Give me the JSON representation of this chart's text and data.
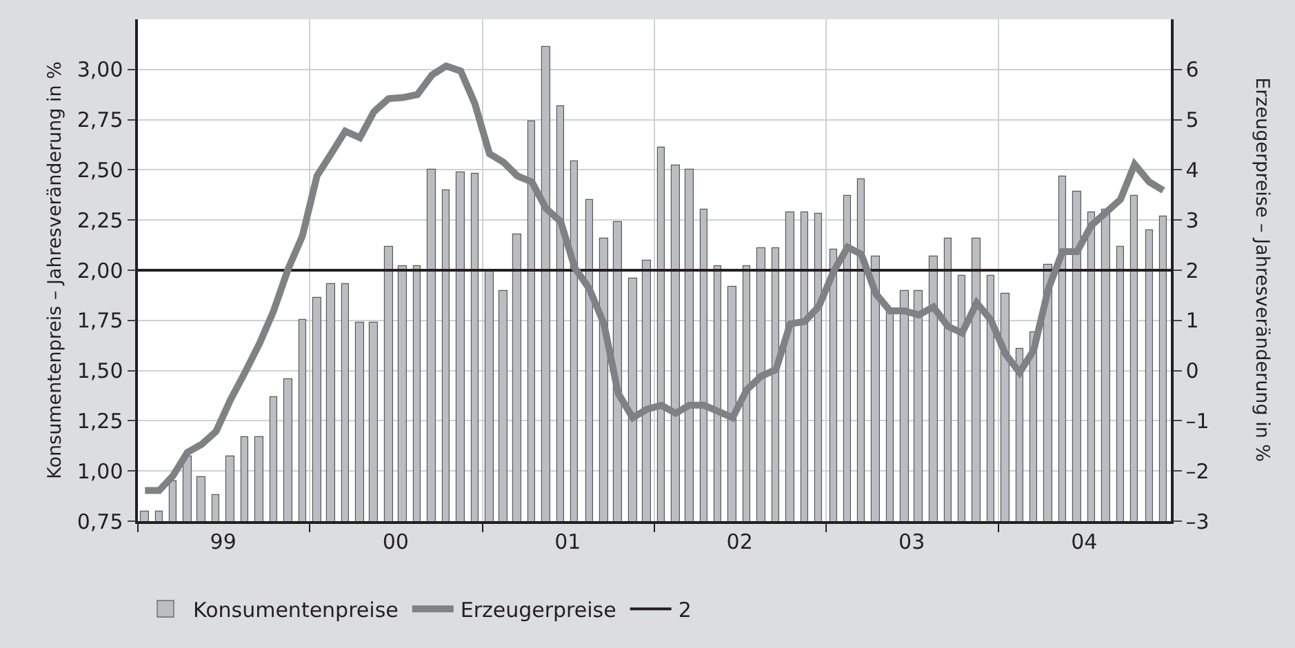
{
  "chart_data": {
    "type": "bar",
    "ylabel": "Konsumentenpreis – Jahresveränderung in %",
    "y2label": "Erzeugerpreise – Jahresveränderung in %",
    "x": [
      "1999-01-16",
      "1999-02-15",
      "1999-03-16",
      "1999-04-16",
      "1999-05-16",
      "1999-06-16",
      "1999-07-16",
      "1999-08-16",
      "1999-09-16",
      "1999-10-16",
      "1999-11-16",
      "1999-12-16",
      "2000-01-16",
      "2000-02-15",
      "2000-03-16",
      "2000-04-16",
      "2000-05-16",
      "2000-06-16",
      "2000-07-16",
      "2000-08-16",
      "2000-09-16",
      "2000-10-16",
      "2000-11-16",
      "2000-12-16",
      "2001-01-16",
      "2001-02-15",
      "2001-03-16",
      "2001-04-16",
      "2001-05-16",
      "2001-06-16",
      "2001-07-16",
      "2001-08-16",
      "2001-09-16",
      "2001-10-16",
      "2001-11-16",
      "2001-12-16",
      "2002-01-16",
      "2002-02-15",
      "2002-03-16",
      "2002-04-16",
      "2002-05-16",
      "2002-06-16",
      "2002-07-16",
      "2002-08-16",
      "2002-09-16",
      "2002-10-16",
      "2002-11-16",
      "2002-12-16",
      "2003-01-16",
      "2003-02-15",
      "2003-03-16",
      "2003-04-16",
      "2003-05-16",
      "2003-06-16",
      "2003-07-16",
      "2003-08-16",
      "2003-09-16",
      "2003-10-16",
      "2003-11-16",
      "2003-12-16",
      "2004-01-16",
      "2004-02-15",
      "2004-03-16",
      "2004-04-16",
      "2004-05-16",
      "2004-06-16",
      "2004-07-16",
      "2004-08-16",
      "2004-09-16",
      "2004-10-16",
      "2004-11-16",
      "2004-12-16"
    ],
    "series": [
      {
        "name": "Konsumentenpreise",
        "color": "#bcbdc1",
        "values": [
          0.8,
          0.8,
          0.95,
          1.07,
          0.97,
          0.88,
          1.07,
          1.17,
          1.17,
          1.37,
          1.46,
          1.75,
          1.86,
          1.93,
          1.93,
          1.74,
          1.74,
          2.12,
          2.02,
          2.02,
          2.5,
          2.4,
          2.49,
          2.48,
          2.0,
          1.9,
          2.18,
          2.74,
          3.11,
          2.82,
          2.54,
          2.35,
          2.16,
          2.24,
          1.96,
          2.05,
          2.61,
          2.52,
          2.5,
          2.3,
          2.02,
          1.92,
          2.02,
          2.11,
          2.11,
          2.29,
          2.29,
          2.28,
          2.1,
          2.37,
          2.45,
          2.07,
          1.8,
          1.9,
          1.9,
          2.07,
          2.16,
          1.97,
          2.16,
          1.97,
          1.88,
          1.61,
          1.69,
          2.03,
          2.47,
          2.39,
          2.29,
          2.3,
          2.12,
          2.37,
          2.2,
          2.27
        ]
      },
      {
        "name": "Erzeugerpreise",
        "type": "line",
        "axis": "y2",
        "color": "#808184",
        "values": [
          -2.39,
          -2.39,
          -2.1,
          -1.63,
          -1.47,
          -1.21,
          -0.59,
          -0.04,
          0.54,
          1.19,
          2.03,
          2.68,
          3.88,
          4.32,
          4.77,
          4.64,
          5.16,
          5.42,
          5.44,
          5.5,
          5.89,
          6.07,
          5.97,
          5.32,
          4.32,
          4.15,
          3.88,
          3.76,
          3.23,
          2.97,
          2.05,
          1.63,
          0.93,
          -0.45,
          -0.94,
          -0.77,
          -0.69,
          -0.85,
          -0.69,
          -0.69,
          -0.81,
          -0.94,
          -0.38,
          -0.11,
          0.02,
          0.93,
          0.98,
          1.28,
          1.97,
          2.46,
          2.32,
          1.53,
          1.19,
          1.19,
          1.11,
          1.27,
          0.88,
          0.75,
          1.35,
          1.01,
          0.33,
          -0.04,
          0.41,
          1.63,
          2.37,
          2.37,
          2.89,
          3.15,
          3.41,
          4.11,
          3.76,
          3.59
        ]
      }
    ],
    "xlim": [
      "1999-01",
      "2005-01"
    ],
    "xticks": [
      {
        "value": "1999-01",
        "label": null
      },
      {
        "value": "1999-07",
        "label": "99"
      },
      {
        "value": "2000-01",
        "label": null
      },
      {
        "value": "2000-07",
        "label": "00"
      },
      {
        "value": "2001-01",
        "label": null
      },
      {
        "value": "2001-07",
        "label": "01"
      },
      {
        "value": "2002-01",
        "label": null
      },
      {
        "value": "2002-07",
        "label": "02"
      },
      {
        "value": "2003-01",
        "label": null
      },
      {
        "value": "2003-07",
        "label": "03"
      },
      {
        "value": "2004-01",
        "label": null
      },
      {
        "value": "2004-07",
        "label": "04"
      }
    ],
    "ylim": [
      0.75,
      3.25
    ],
    "yticks": [
      {
        "value": 0.75,
        "label": "0,75"
      },
      {
        "value": 1,
        "label": "1,00"
      },
      {
        "value": 1.25,
        "label": "1,25"
      },
      {
        "value": 1.5,
        "label": "1,50"
      },
      {
        "value": 1.75,
        "label": "1,75"
      },
      {
        "value": 2,
        "label": "2,00"
      },
      {
        "value": 2.25,
        "label": "2,25"
      },
      {
        "value": 2.5,
        "label": "2,50"
      },
      {
        "value": 2.75,
        "label": "2,75"
      },
      {
        "value": 3,
        "label": "3,00"
      }
    ],
    "y2lim": [
      -3,
      7
    ],
    "y2ticks": [
      {
        "value": -3,
        "label": "–3"
      },
      {
        "value": -2,
        "label": "–2"
      },
      {
        "value": -1,
        "label": "–1"
      },
      0,
      1,
      2,
      3,
      4,
      5,
      6
    ],
    "ref_lines": [
      {
        "axis": "y",
        "value": 2,
        "label": "2",
        "color": "#231f20"
      }
    ],
    "grid": true,
    "legend": "bottom"
  }
}
